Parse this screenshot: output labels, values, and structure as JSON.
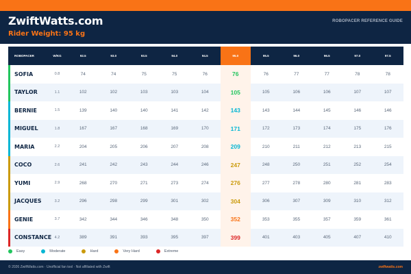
{
  "header": {
    "logo": "ZwiftWatts.com",
    "rider_weight": "Rider Weight: 95 kg",
    "reference": "ROBOPACER REFERENCE GUIDE"
  },
  "table": {
    "columns": [
      "ROBOPACER",
      "W/KG",
      "92.5",
      "93.0",
      "93.5",
      "94.0",
      "94.5",
      "95.0",
      "95.5",
      "96.0",
      "96.5",
      "97.0",
      "97.5"
    ],
    "highlight_column": 7,
    "rows": [
      {
        "name": "SOFIA",
        "wkg": "0.8",
        "values": [
          "74",
          "74",
          "75",
          "75",
          "76",
          "76",
          "76",
          "77",
          "77",
          "78",
          "78"
        ],
        "color": "#22c55e"
      },
      {
        "name": "TAYLOR",
        "wkg": "1.1",
        "values": [
          "102",
          "102",
          "103",
          "103",
          "104",
          "105",
          "105",
          "106",
          "106",
          "107",
          "107"
        ],
        "color": "#22c55e"
      },
      {
        "name": "BERNIE",
        "wkg": "1.5",
        "values": [
          "139",
          "140",
          "140",
          "141",
          "142",
          "143",
          "143",
          "144",
          "145",
          "146",
          "146"
        ],
        "color": "#06b6d4"
      },
      {
        "name": "MIGUEL",
        "wkg": "1.8",
        "values": [
          "167",
          "167",
          "168",
          "169",
          "170",
          "171",
          "172",
          "173",
          "174",
          "175",
          "176"
        ],
        "color": "#06b6d4"
      },
      {
        "name": "MARIA",
        "wkg": "2.2",
        "values": [
          "204",
          "205",
          "206",
          "207",
          "208",
          "209",
          "210",
          "211",
          "212",
          "213",
          "215"
        ],
        "color": "#06b6d4"
      },
      {
        "name": "COCO",
        "wkg": "2.6",
        "values": [
          "241",
          "242",
          "243",
          "244",
          "246",
          "247",
          "248",
          "250",
          "251",
          "252",
          "254"
        ],
        "color": "#ca9a0b"
      },
      {
        "name": "YUMI",
        "wkg": "2.9",
        "values": [
          "268",
          "270",
          "271",
          "273",
          "274",
          "276",
          "277",
          "278",
          "280",
          "281",
          "283"
        ],
        "color": "#ca9a0b"
      },
      {
        "name": "JACQUES",
        "wkg": "3.2",
        "values": [
          "296",
          "298",
          "299",
          "301",
          "302",
          "304",
          "306",
          "307",
          "309",
          "310",
          "312"
        ],
        "color": "#ca9a0b"
      },
      {
        "name": "GENIE",
        "wkg": "3.7",
        "values": [
          "342",
          "344",
          "346",
          "348",
          "350",
          "352",
          "353",
          "355",
          "357",
          "359",
          "361"
        ],
        "color": "#f97316"
      },
      {
        "name": "CONSTANCE",
        "wkg": "4.2",
        "values": [
          "389",
          "391",
          "393",
          "395",
          "397",
          "399",
          "401",
          "403",
          "405",
          "407",
          "410"
        ],
        "color": "#dc2626"
      }
    ]
  },
  "legend": [
    {
      "label": "Easy",
      "color": "#22c55e"
    },
    {
      "label": "Moderate",
      "color": "#06b6d4"
    },
    {
      "label": "Hard",
      "color": "#ca9a0b"
    },
    {
      "label": "Very Hard",
      "color": "#f97316"
    },
    {
      "label": "Extreme",
      "color": "#dc2626"
    }
  ],
  "footer": {
    "left": "© 2026 ZwiftWatts.com · Unofficial fan tool · Not affiliated with Zwift",
    "right": "zwiftwatts.com"
  }
}
